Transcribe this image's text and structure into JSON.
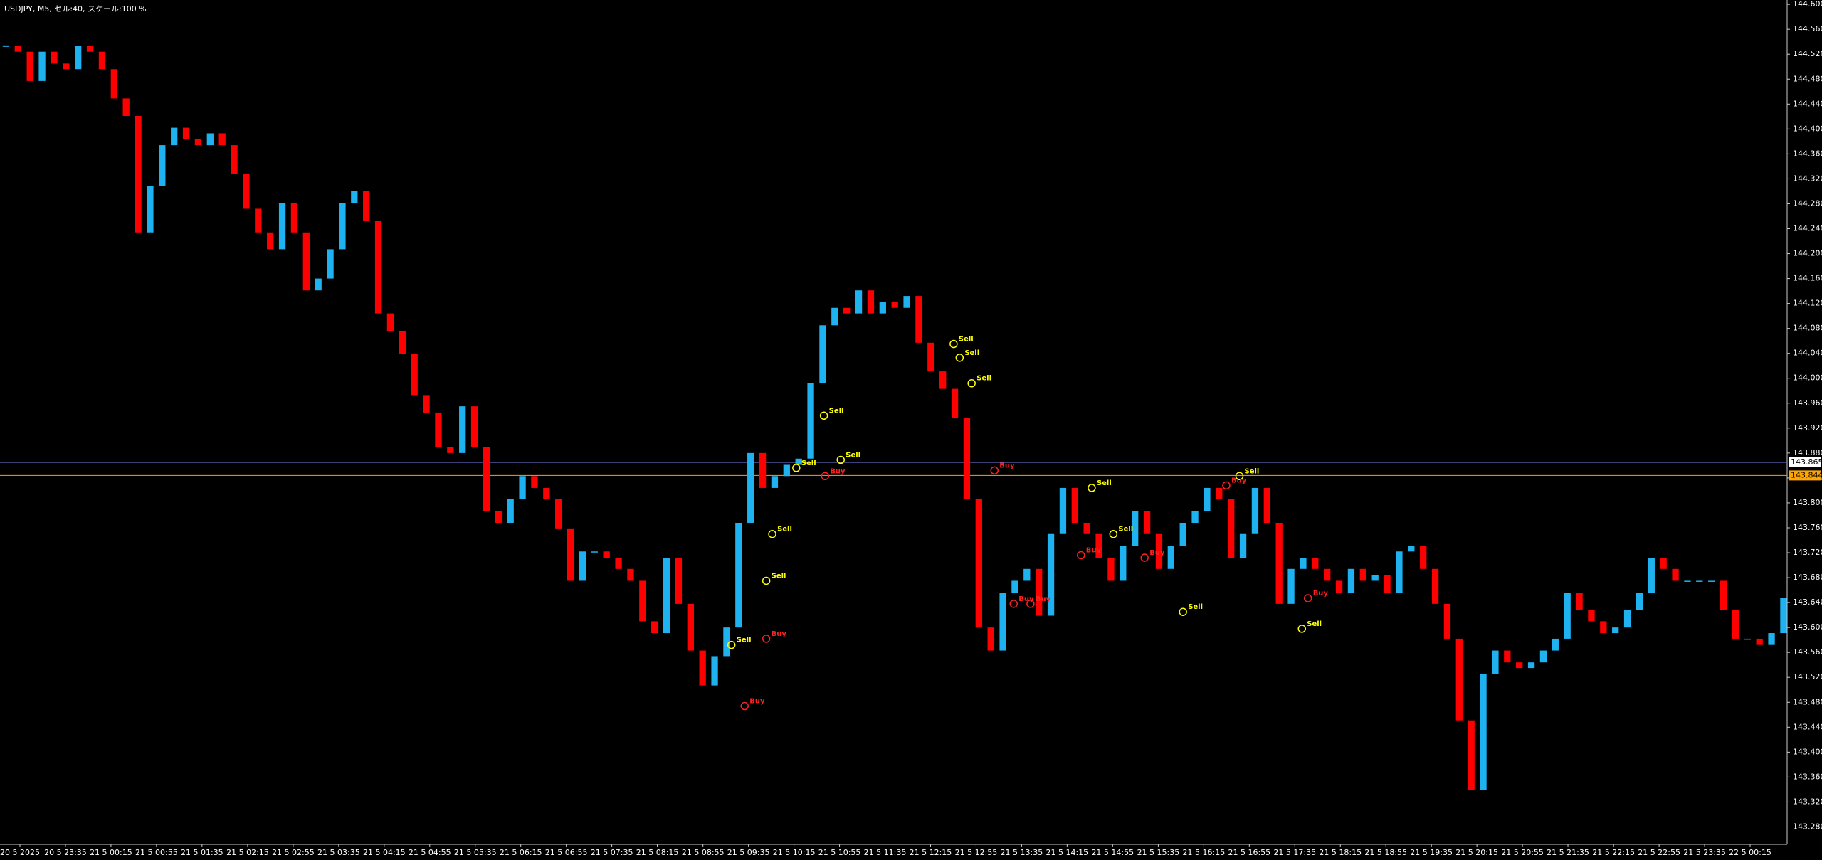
{
  "chart_data": {
    "type": "candlestick",
    "title": "USDJPY, M5, セル:40, スケール:100 %",
    "values": [
      144.533,
      144.524,
      144.477,
      144.524,
      144.505,
      144.496,
      144.533,
      144.524,
      144.496,
      144.449,
      144.421,
      144.234,
      144.309,
      144.374,
      144.402,
      144.384,
      144.374,
      144.393,
      144.374,
      144.328,
      144.272,
      144.234,
      144.207,
      144.281,
      144.234,
      144.141,
      144.16,
      144.207,
      144.281,
      144.3,
      144.253,
      144.104,
      144.076,
      144.039,
      143.973,
      143.945,
      143.889,
      143.88,
      143.955,
      143.889,
      143.787,
      143.768,
      143.806,
      143.843,
      143.824,
      143.806,
      143.759,
      143.675,
      143.722,
      143.722,
      143.712,
      143.694,
      143.675,
      143.61,
      143.591,
      143.712,
      143.638,
      143.563,
      143.507,
      143.554,
      143.6,
      143.768,
      143.88,
      143.824,
      143.843,
      143.861,
      143.871,
      143.992,
      144.085,
      144.113,
      144.104,
      144.141,
      144.104,
      144.123,
      144.113,
      144.132,
      144.057,
      144.011,
      143.983,
      143.936,
      143.806,
      143.6,
      143.563,
      143.656,
      143.675,
      143.694,
      143.619,
      143.75,
      143.824,
      143.768,
      143.75,
      143.712,
      143.675,
      143.731,
      143.787,
      143.75,
      143.694,
      143.731,
      143.768,
      143.787,
      143.824,
      143.806,
      143.712,
      143.75,
      143.824,
      143.768,
      143.638,
      143.694,
      143.712,
      143.694,
      143.675,
      143.656,
      143.694,
      143.675,
      143.684,
      143.656,
      143.722,
      143.731,
      143.694,
      143.638,
      143.582,
      143.451,
      143.339,
      143.526,
      143.563,
      143.544,
      143.535,
      143.544,
      143.563,
      143.582,
      143.656,
      143.628,
      143.61,
      143.591,
      143.6,
      143.628,
      143.656,
      143.712,
      143.694,
      143.675,
      143.675,
      143.675,
      143.675,
      143.628,
      143.582,
      143.582,
      143.572,
      143.591,
      143.647
    ],
    "up_color": "#1fb2f0",
    "down_color": "#ff0000",
    "xlim": [
      -0.5,
      148.3
    ],
    "xticks": [
      {
        "value": 1.16,
        "label": "20 5 2025"
      },
      {
        "value": 4.95,
        "label": "20 5 23:35"
      },
      {
        "value": 8.74,
        "label": "21 5 00:15"
      },
      {
        "value": 12.53,
        "label": "21 5 00:55"
      },
      {
        "value": 16.32,
        "label": "21 5 01:35"
      },
      {
        "value": 20.12,
        "label": "21 5 02:15"
      },
      {
        "value": 23.91,
        "label": "21 5 02:55"
      },
      {
        "value": 27.7,
        "label": "21 5 03:35"
      },
      {
        "value": 31.49,
        "label": "21 5 04:15"
      },
      {
        "value": 35.28,
        "label": "21 5 04:55"
      },
      {
        "value": 39.07,
        "label": "21 5 05:35"
      },
      {
        "value": 42.86,
        "label": "21 5 06:15"
      },
      {
        "value": 46.65,
        "label": "21 5 06:55"
      },
      {
        "value": 50.44,
        "label": "21 5 07:35"
      },
      {
        "value": 54.23,
        "label": "21 5 08:15"
      },
      {
        "value": 58.03,
        "label": "21 5 08:55"
      },
      {
        "value": 61.82,
        "label": "21 5 09:35"
      },
      {
        "value": 65.61,
        "label": "21 5 10:15"
      },
      {
        "value": 69.4,
        "label": "21 5 10:55"
      },
      {
        "value": 73.19,
        "label": "21 5 11:35"
      },
      {
        "value": 76.98,
        "label": "21 5 12:15"
      },
      {
        "value": 80.77,
        "label": "21 5 12:55"
      },
      {
        "value": 84.56,
        "label": "21 5 13:35"
      },
      {
        "value": 88.35,
        "label": "21 5 14:15"
      },
      {
        "value": 92.14,
        "label": "21 5 14:55"
      },
      {
        "value": 95.94,
        "label": "21 5 15:35"
      },
      {
        "value": 99.73,
        "label": "21 5 16:15"
      },
      {
        "value": 103.52,
        "label": "21 5 16:55"
      },
      {
        "value": 107.31,
        "label": "21 5 17:35"
      },
      {
        "value": 111.1,
        "label": "21 5 18:15"
      },
      {
        "value": 114.89,
        "label": "21 5 18:55"
      },
      {
        "value": 118.68,
        "label": "21 5 19:35"
      },
      {
        "value": 122.47,
        "label": "21 5 20:15"
      },
      {
        "value": 126.26,
        "label": "21 5 20:55"
      },
      {
        "value": 130.05,
        "label": "21 5 21:35"
      },
      {
        "value": 133.85,
        "label": "21 5 22:15"
      },
      {
        "value": 137.64,
        "label": "21 5 22:55"
      },
      {
        "value": 141.43,
        "label": "21 5 23:35"
      },
      {
        "value": 145.22,
        "label": "22 5 00:15"
      }
    ],
    "ylim": [
      143.252,
      144.607
    ],
    "yticks": [
      {
        "value": 143.28,
        "label": "143.280"
      },
      {
        "value": 143.32,
        "label": "143.320"
      },
      {
        "value": 143.36,
        "label": "143.360"
      },
      {
        "value": 143.4,
        "label": "143.400"
      },
      {
        "value": 143.44,
        "label": "143.440"
      },
      {
        "value": 143.48,
        "label": "143.480"
      },
      {
        "value": 143.52,
        "label": "143.520"
      },
      {
        "value": 143.56,
        "label": "143.560"
      },
      {
        "value": 143.6,
        "label": "143.600"
      },
      {
        "value": 143.64,
        "label": "143.640"
      },
      {
        "value": 143.68,
        "label": "143.680"
      },
      {
        "value": 143.72,
        "label": "143.720"
      },
      {
        "value": 143.76,
        "label": "143.760"
      },
      {
        "value": 143.8,
        "label": "143.800"
      },
      {
        "value": 143.84,
        "label": "143.840"
      },
      {
        "value": 143.88,
        "label": "143.880"
      },
      {
        "value": 143.92,
        "label": "143.920"
      },
      {
        "value": 143.96,
        "label": "143.960"
      },
      {
        "value": 144,
        "label": "144.000"
      },
      {
        "value": 144.04,
        "label": "144.040"
      },
      {
        "value": 144.08,
        "label": "144.080"
      },
      {
        "value": 144.12,
        "label": "144.120"
      },
      {
        "value": 144.16,
        "label": "144.160"
      },
      {
        "value": 144.2,
        "label": "144.200"
      },
      {
        "value": 144.24,
        "label": "144.240"
      },
      {
        "value": 144.28,
        "label": "144.280"
      },
      {
        "value": 144.32,
        "label": "144.320"
      },
      {
        "value": 144.36,
        "label": "144.360"
      },
      {
        "value": 144.4,
        "label": "144.400"
      },
      {
        "value": 144.44,
        "label": "144.440"
      },
      {
        "value": 144.48,
        "label": "144.480"
      },
      {
        "value": 144.52,
        "label": "144.520"
      },
      {
        "value": 144.56,
        "label": "144.560"
      },
      {
        "value": 144.6,
        "label": "144.600"
      }
    ],
    "hlines": [
      143.865,
      143.844
    ],
    "hline_colors": [
      "#7c7cf0",
      "#ffa500"
    ],
    "grid": false,
    "annotations": [
      {
        "text": "Sell",
        "x": 60.4,
        "y": 143.572,
        "color": "#ffff00"
      },
      {
        "text": "Buy",
        "x": 61.5,
        "y": 143.474,
        "color": "#ff2020"
      },
      {
        "text": "Sell",
        "x": 63.3,
        "y": 143.675,
        "color": "#ffff00"
      },
      {
        "text": "Sell",
        "x": 63.8,
        "y": 143.75,
        "color": "#ffff00"
      },
      {
        "text": "Buy",
        "x": 63.3,
        "y": 143.582,
        "color": "#ff2020"
      },
      {
        "text": "Sell",
        "x": 65.8,
        "y": 143.856,
        "color": "#ffff00"
      },
      {
        "text": "Buy",
        "x": 68.2,
        "y": 143.843,
        "color": "#ff2020"
      },
      {
        "text": "Sell",
        "x": 68.1,
        "y": 143.94,
        "color": "#ffff00"
      },
      {
        "text": "Sell",
        "x": 69.5,
        "y": 143.869,
        "color": "#ffff00"
      },
      {
        "text": "Sell",
        "x": 78.9,
        "y": 144.055,
        "color": "#ffff00"
      },
      {
        "text": "Sell",
        "x": 79.4,
        "y": 144.033,
        "color": "#ffff00"
      },
      {
        "text": "Sell",
        "x": 80.4,
        "y": 143.992,
        "color": "#ffff00"
      },
      {
        "text": "Buy",
        "x": 82.3,
        "y": 143.852,
        "color": "#ff2020"
      },
      {
        "text": "Buy",
        "x": 83.9,
        "y": 143.638,
        "color": "#ff2020"
      },
      {
        "text": "Buy",
        "x": 85.3,
        "y": 143.638,
        "color": "#ff2020"
      },
      {
        "text": "Sell",
        "x": 90.4,
        "y": 143.824,
        "color": "#ffff00"
      },
      {
        "text": "Buy",
        "x": 89.5,
        "y": 143.716,
        "color": "#ff2020"
      },
      {
        "text": "Sell",
        "x": 92.2,
        "y": 143.75,
        "color": "#ffff00"
      },
      {
        "text": "Buy",
        "x": 94.8,
        "y": 143.712,
        "color": "#ff2020"
      },
      {
        "text": "Sell",
        "x": 98,
        "y": 143.625,
        "color": "#ffff00"
      },
      {
        "text": "Sell",
        "x": 102.7,
        "y": 143.843,
        "color": "#ffff00"
      },
      {
        "text": "Buy",
        "x": 101.6,
        "y": 143.828,
        "color": "#ff2020"
      },
      {
        "text": "Buy",
        "x": 108.4,
        "y": 143.647,
        "color": "#ff2020"
      },
      {
        "text": "Sell",
        "x": 107.9,
        "y": 143.598,
        "color": "#ffff00"
      }
    ]
  }
}
